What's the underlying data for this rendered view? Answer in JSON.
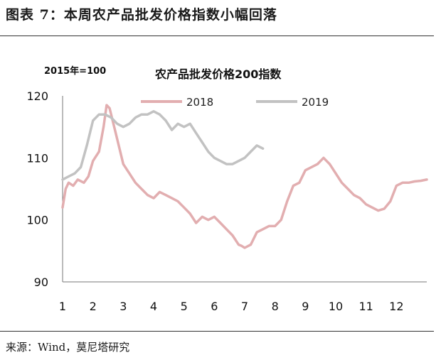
{
  "figure": {
    "title": "图表 7：本周农产品批发价格指数小幅回落",
    "source": "来源：Wind，莫尼塔研究"
  },
  "chart_data": {
    "type": "line",
    "title": "农产品批发价格200指数",
    "unit_label": "2015年=100",
    "xlabel": "",
    "ylabel": "",
    "ylim": [
      90,
      120
    ],
    "yticks": [
      90,
      100,
      110,
      120
    ],
    "xlim": [
      1,
      13
    ],
    "xticks": [
      "1",
      "2",
      "3",
      "4",
      "5",
      "6",
      "7",
      "8",
      "9",
      "10",
      "11",
      "12"
    ],
    "grid": false,
    "legend_position": "top",
    "series": [
      {
        "name": "2018",
        "color": "#e2aeb0",
        "x": [
          1.0,
          1.1,
          1.2,
          1.35,
          1.5,
          1.7,
          1.85,
          2.0,
          2.2,
          2.35,
          2.45,
          2.55,
          2.65,
          2.8,
          3.0,
          3.2,
          3.4,
          3.6,
          3.8,
          4.0,
          4.2,
          4.4,
          4.6,
          4.8,
          5.0,
          5.2,
          5.4,
          5.6,
          5.8,
          6.0,
          6.2,
          6.4,
          6.6,
          6.8,
          6.9,
          7.0,
          7.2,
          7.4,
          7.6,
          7.8,
          8.0,
          8.2,
          8.4,
          8.6,
          8.8,
          9.0,
          9.2,
          9.4,
          9.6,
          9.8,
          10.0,
          10.2,
          10.4,
          10.6,
          10.8,
          11.0,
          11.2,
          11.4,
          11.6,
          11.8,
          12.0,
          12.2,
          12.4,
          12.6,
          12.8,
          13.0
        ],
        "values": [
          102.0,
          105.0,
          106.0,
          105.5,
          106.5,
          106.0,
          107.0,
          109.5,
          111.0,
          115.0,
          118.5,
          118.0,
          116.0,
          113.0,
          109.0,
          107.5,
          106.0,
          105.0,
          104.0,
          103.5,
          104.5,
          104.0,
          103.5,
          103.0,
          102.0,
          101.0,
          99.5,
          100.5,
          100.0,
          100.5,
          99.5,
          98.5,
          97.5,
          96.0,
          95.8,
          95.5,
          96.0,
          98.0,
          98.5,
          99.0,
          99.0,
          100.0,
          103.0,
          105.5,
          106.0,
          108.0,
          108.5,
          109.0,
          110.0,
          109.0,
          107.5,
          106.0,
          105.0,
          104.0,
          103.5,
          102.5,
          102.0,
          101.5,
          101.8,
          103.0,
          105.5,
          106.0,
          106.0,
          106.2,
          106.3,
          106.5
        ]
      },
      {
        "name": "2019",
        "color": "#c2c2c2",
        "x": [
          1.0,
          1.2,
          1.4,
          1.6,
          1.8,
          2.0,
          2.2,
          2.4,
          2.6,
          2.8,
          3.0,
          3.2,
          3.4,
          3.6,
          3.8,
          4.0,
          4.2,
          4.4,
          4.6,
          4.8,
          5.0,
          5.2,
          5.4,
          5.6,
          5.8,
          6.0,
          6.2,
          6.4,
          6.6,
          6.8,
          7.0,
          7.2,
          7.4,
          7.6
        ],
        "values": [
          106.5,
          107.0,
          107.5,
          108.5,
          112.0,
          116.0,
          117.0,
          117.0,
          116.5,
          115.5,
          115.0,
          115.5,
          116.5,
          117.0,
          117.0,
          117.5,
          117.0,
          116.0,
          114.5,
          115.5,
          115.0,
          115.5,
          114.0,
          112.5,
          111.0,
          110.0,
          109.5,
          109.0,
          109.0,
          109.5,
          110.0,
          111.0,
          112.0,
          111.5
        ]
      }
    ]
  }
}
